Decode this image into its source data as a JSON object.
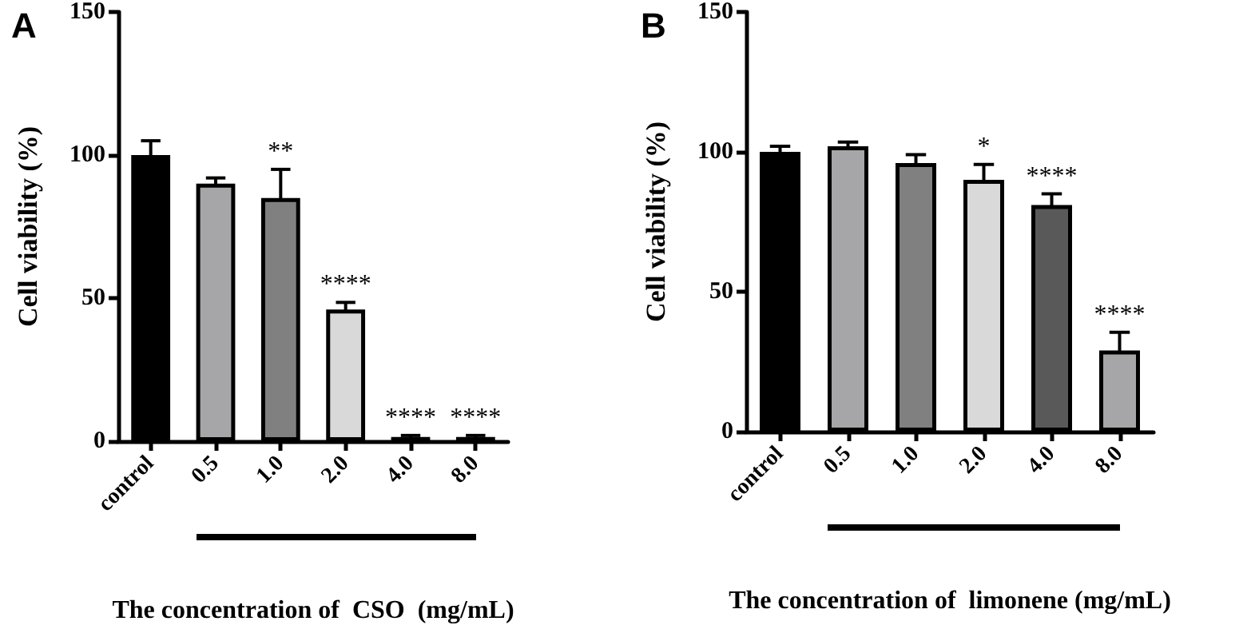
{
  "chart_data": [
    {
      "type": "bar",
      "title": "A",
      "xlabel": "The concentration of  CSO  (mg/mL)",
      "ylabel": "Cell viability (%)",
      "categories": [
        "control",
        "0.5",
        "1.0",
        "2.0",
        "4.0",
        "8.0"
      ],
      "values": [
        100,
        90,
        85,
        46,
        1.5,
        1.5
      ],
      "errors": [
        5,
        2,
        10,
        2.5,
        0.5,
        0.5
      ],
      "colors": [
        "#000000",
        "#a6a6a8",
        "#808080",
        "#d9d9d9",
        "#595959",
        "#a6a6a8"
      ],
      "ylim": [
        0,
        150
      ],
      "yticks": [
        0,
        50,
        100,
        150
      ],
      "annotations": [
        {
          "text": "**",
          "x": "1.0",
          "y": 95
        },
        {
          "text": "****",
          "x": "2.0",
          "y": 48.5
        },
        {
          "text": "****",
          "x": "4.0",
          "y": 2
        },
        {
          "text": "****",
          "x": "8.0",
          "y": 2
        }
      ]
    },
    {
      "type": "bar",
      "title": "B",
      "xlabel": "The concentration of  limonene (mg/mL)",
      "ylabel": "Cell viability (%)",
      "categories": [
        "control",
        "0.5",
        "1.0",
        "2.0",
        "4.0",
        "8.0"
      ],
      "values": [
        100,
        102,
        96,
        90,
        81,
        29
      ],
      "errors": [
        2,
        1.5,
        3,
        5.5,
        4,
        6.5
      ],
      "colors": [
        "#000000",
        "#a6a6a8",
        "#808080",
        "#d9d9d9",
        "#595959",
        "#a6a6a8"
      ],
      "ylim": [
        0,
        150
      ],
      "yticks": [
        0,
        50,
        100,
        150
      ],
      "annotations": [
        {
          "text": "*",
          "x": "2.0",
          "y": 95.5
        },
        {
          "text": "****",
          "x": "4.0",
          "y": 85
        },
        {
          "text": "****",
          "x": "8.0",
          "y": 35.5
        }
      ]
    }
  ]
}
